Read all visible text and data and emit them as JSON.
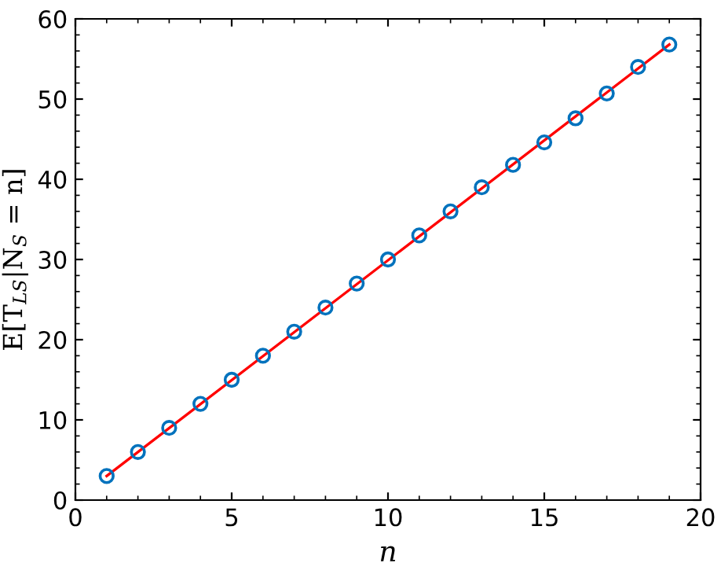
{
  "chart_data": {
    "type": "scatter",
    "xlabel": "n",
    "ylabel": "E[T$_{LS}$|N$_{S}$ = n]",
    "x": [
      1,
      2,
      3,
      4,
      5,
      6,
      7,
      8,
      9,
      10,
      11,
      12,
      13,
      14,
      15,
      16,
      17,
      18,
      19
    ],
    "series": [
      {
        "color": "#0072bd",
        "marker": "circle",
        "values": [
          3,
          6,
          9,
          12,
          15,
          18,
          21,
          24,
          27,
          30,
          33,
          36,
          39,
          41.8,
          44.6,
          47.6,
          50.7,
          54,
          56.8
        ]
      },
      {
        "type": "line",
        "color": "#ff0000",
        "x": [
          1,
          19
        ],
        "values": [
          3,
          56.8
        ]
      }
    ],
    "xlim": [
      0,
      20
    ],
    "ylim": [
      0,
      60
    ],
    "xticks": [
      0,
      5,
      10,
      15,
      20
    ],
    "yticks": [
      0,
      10,
      20,
      30,
      40,
      50,
      60
    ],
    "grid": false,
    "legend": false
  }
}
